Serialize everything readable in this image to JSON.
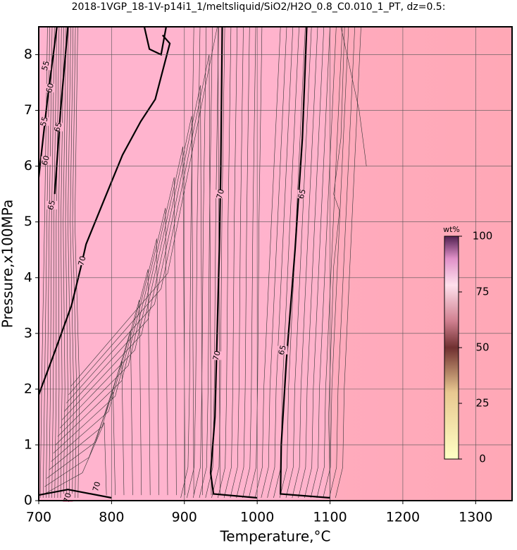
{
  "chart_data": {
    "type": "contour",
    "title": "2018-1VGP_18-1V-p14i1_1/meltsliquid/SiO2/H2O_0.8_C0.010_1_PT, dz=0.5:",
    "x_label": "Temperature,°C",
    "y_label": "Pressure,x100MPa",
    "xlim": [
      700,
      1350
    ],
    "ylim": [
      0,
      8.5
    ],
    "xticks": [
      700,
      800,
      900,
      1000,
      1100,
      1200,
      1300
    ],
    "yticks": [
      0,
      1,
      2,
      3,
      4,
      5,
      6,
      7,
      8
    ],
    "grid": true,
    "contour_labels": [
      55,
      60,
      55,
      65,
      60,
      65,
      70,
      70,
      65,
      70,
      65,
      70,
      70
    ],
    "colorbar": {
      "label": "wt%",
      "lim": [
        0,
        100
      ],
      "ticks": [
        0,
        25,
        50,
        75,
        100
      ]
    }
  }
}
